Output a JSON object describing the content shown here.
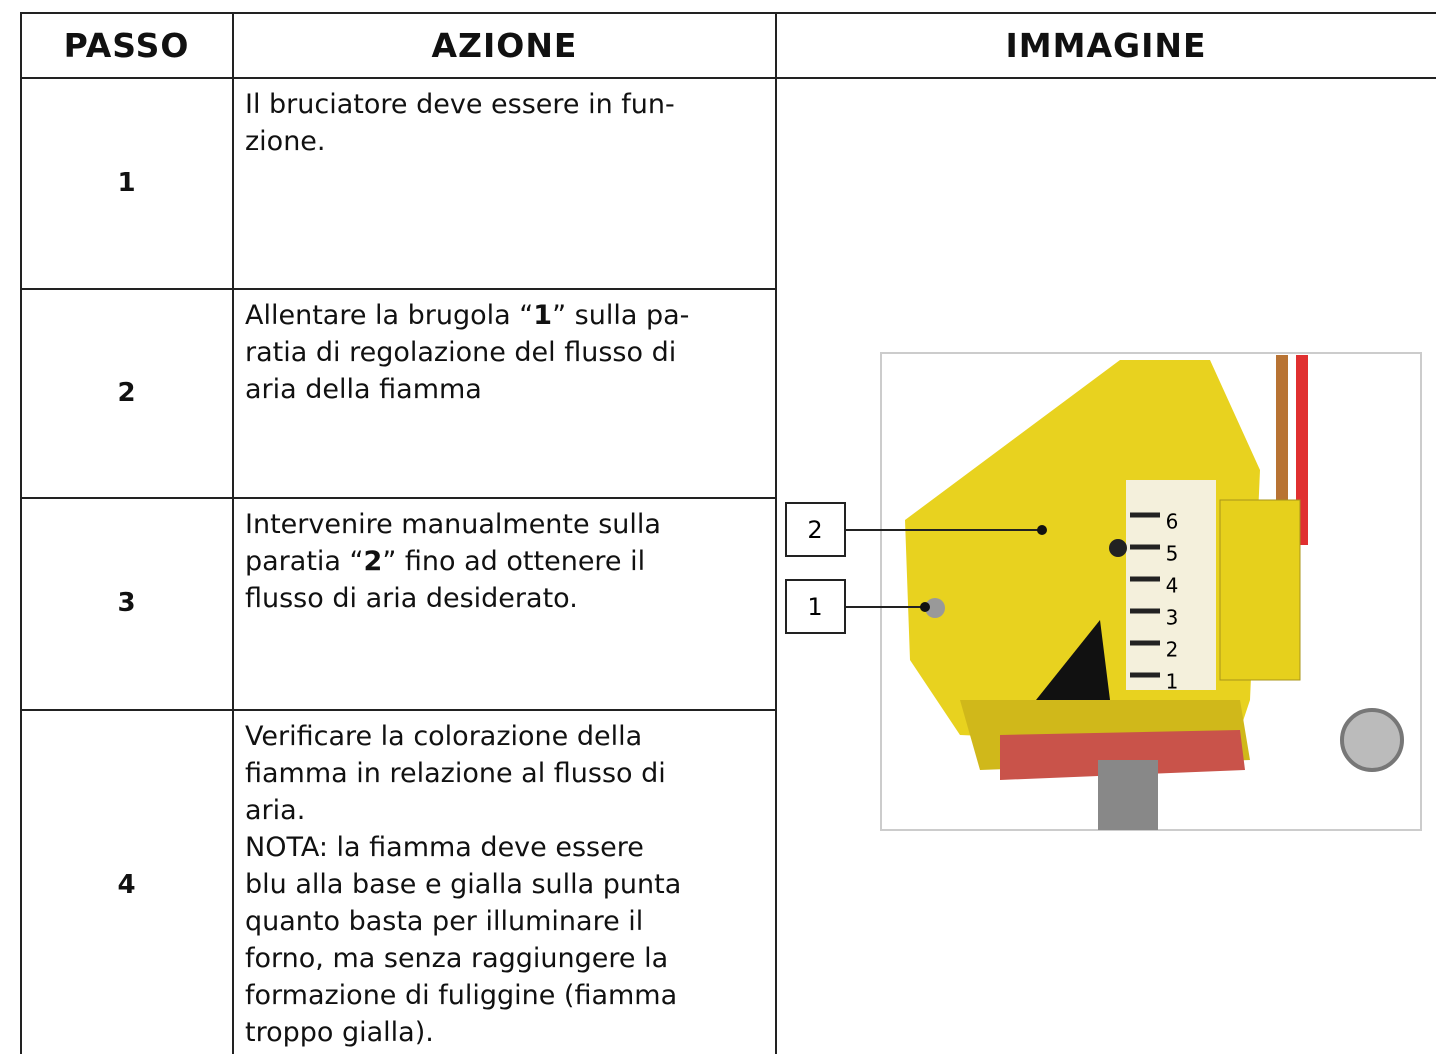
{
  "table": {
    "header": [
      "PASSO",
      "AZIONE",
      "IMMAGINE"
    ],
    "rows": [
      {
        "step": "1",
        "action": [
          [
            {
              "text": "Il bruciatore deve essere in fun-",
              "bold": false
            }
          ],
          [
            {
              "text": "zione.",
              "bold": false
            }
          ]
        ]
      },
      {
        "step": "2",
        "action": [
          [
            {
              "text": "Allentare la brugola “",
              "bold": false
            },
            {
              "text": "1",
              "bold": true
            },
            {
              "text": "” sulla pa-",
              "bold": false
            }
          ],
          [
            {
              "text": "ratia di regolazione del flusso di",
              "bold": false
            }
          ],
          [
            {
              "text": "aria della fiamma",
              "bold": false
            }
          ]
        ]
      },
      {
        "step": "3",
        "action": [
          [
            {
              "text": "Intervenire manualmente sulla",
              "bold": false
            }
          ],
          [
            {
              "text": "paratia “",
              "bold": false
            },
            {
              "text": "2",
              "bold": true
            },
            {
              "text": "” fino ad ottenere il",
              "bold": false
            }
          ],
          [
            {
              "text": "flusso di aria desiderato.",
              "bold": false
            }
          ]
        ]
      },
      {
        "step": "4",
        "action": [
          [
            {
              "text": "Verificare la colorazione della",
              "bold": false
            }
          ],
          [
            {
              "text": "fiamma in relazione al flusso di",
              "bold": false
            }
          ],
          [
            {
              "text": "aria.",
              "bold": false
            }
          ],
          [
            {
              "text": "NOTA: la fiamma deve essere",
              "bold": false
            }
          ],
          [
            {
              "text": "blu alla base e gialla sulla punta",
              "bold": false
            }
          ],
          [
            {
              "text": "quanto basta per illuminare il",
              "bold": false
            }
          ],
          [
            {
              "text": "forno, ma senza raggiungere la",
              "bold": false
            }
          ],
          [
            {
              "text": "formazione di fuliggine (fiamma",
              "bold": false
            }
          ],
          [
            {
              "text": "troppo gialla).",
              "bold": false
            }
          ]
        ]
      }
    ]
  },
  "image": {
    "callouts": [
      "2",
      "1"
    ],
    "scale_labels": [
      "6",
      "5",
      "4",
      "3",
      "2",
      "1"
    ]
  }
}
